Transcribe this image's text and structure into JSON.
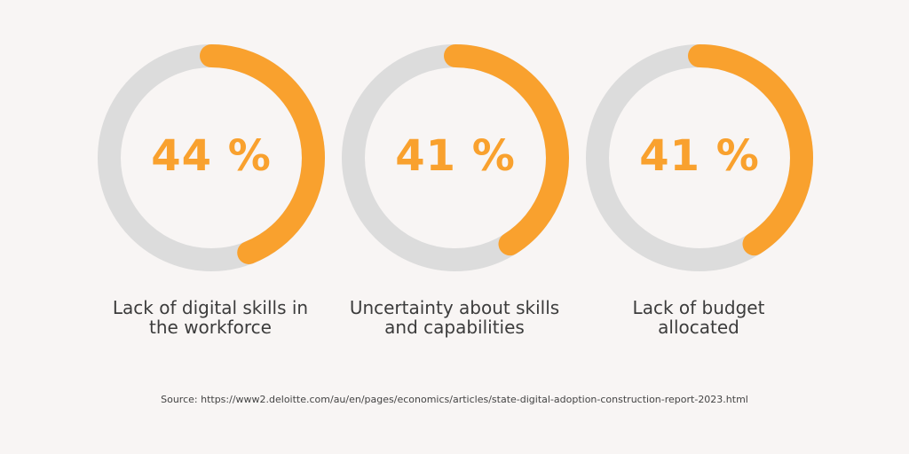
{
  "chart_data": [
    {
      "type": "pie",
      "value": 44,
      "value_label": "44 %",
      "caption": [
        "Lack of digital skills in",
        "the workforce"
      ],
      "colors": {
        "fill": "#f9a12e",
        "track": "#dcdcdc"
      }
    },
    {
      "type": "pie",
      "value": 41,
      "value_label": "41 %",
      "caption": [
        "Uncertainty about skills",
        "and capabilities"
      ],
      "colors": {
        "fill": "#f9a12e",
        "track": "#dcdcdc"
      }
    },
    {
      "type": "pie",
      "value": 41,
      "value_label": "41 %",
      "caption": [
        "Lack of budget",
        "allocated"
      ],
      "colors": {
        "fill": "#f9a12e",
        "track": "#dcdcdc"
      }
    }
  ],
  "source": "Source: https://www2.deloitte.com/au/en/pages/economics/articles/state-digital-adoption-construction-report-2023.html"
}
